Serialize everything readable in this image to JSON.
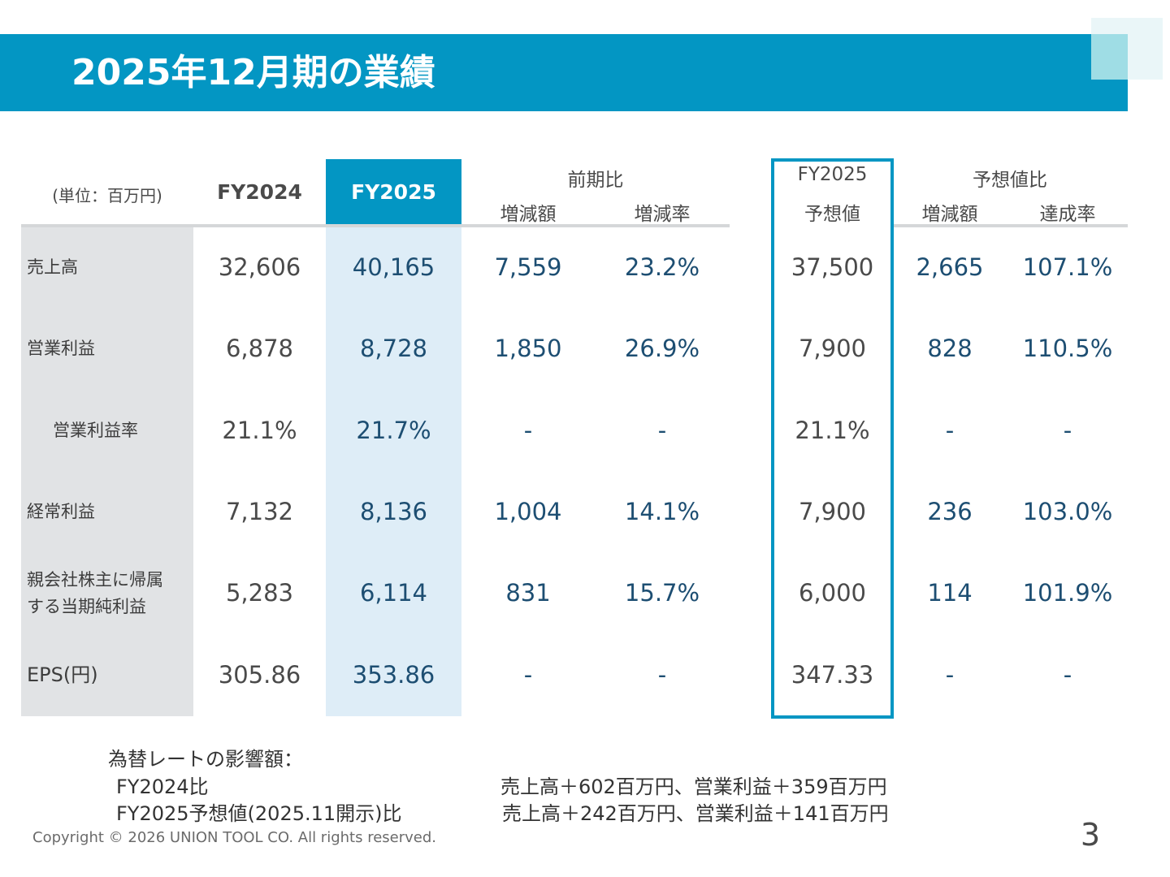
{
  "title": "2025年12月期の業績",
  "colors": {
    "accent": "#0396c3",
    "highlight": "#deedf7",
    "label_bg": "#e1e3e5",
    "value_blue": "#1d4e72"
  },
  "table": {
    "unit": "(単位：百万円)",
    "headers": {
      "fy2024": "FY2024",
      "fy2025": "FY2025",
      "prev_group": "前期比",
      "prev_diff": "増減額",
      "prev_rate": "増減率",
      "fc_line1": "FY2025",
      "fc_line2": "予想値",
      "fc_group": "予想値比",
      "fc_diff": "増減額",
      "fc_rate": "達成率"
    },
    "rows": [
      {
        "label": "売上高",
        "fy2024": "32,606",
        "fy2025": "40,165",
        "prev_diff": "7,559",
        "prev_rate": "23.2%",
        "forecast": "37,500",
        "fc_diff": "2,665",
        "fc_rate": "107.1%"
      },
      {
        "label": "営業利益",
        "fy2024": "6,878",
        "fy2025": "8,728",
        "prev_diff": "1,850",
        "prev_rate": "26.9%",
        "forecast": "7,900",
        "fc_diff": "828",
        "fc_rate": "110.5%"
      },
      {
        "label": "営業利益率",
        "fy2024": "21.1%",
        "fy2025": "21.7%",
        "prev_diff": "-",
        "prev_rate": "-",
        "forecast": "21.1%",
        "fc_diff": "-",
        "fc_rate": "-"
      },
      {
        "label": "経常利益",
        "fy2024": "7,132",
        "fy2025": "8,136",
        "prev_diff": "1,004",
        "prev_rate": "14.1%",
        "forecast": "7,900",
        "fc_diff": "236",
        "fc_rate": "103.0%"
      },
      {
        "label_line1": "親会社株主に帰属",
        "label_line2": "する当期純利益",
        "fy2024": "5,283",
        "fy2025": "6,114",
        "prev_diff": "831",
        "prev_rate": "15.7%",
        "forecast": "6,000",
        "fc_diff": "114",
        "fc_rate": "101.9%"
      },
      {
        "label": "EPS(円)",
        "fy2024": "305.86",
        "fy2025": "353.86",
        "prev_diff": "-",
        "prev_rate": "-",
        "forecast": "347.33",
        "fc_diff": "-",
        "fc_rate": "-"
      }
    ]
  },
  "fx_note": {
    "heading": "為替レートの影響額：",
    "line1_label": "FY2024比",
    "line1_value": "売上高＋602百万円、営業利益＋359百万円",
    "line2_label": "FY2025予想値(2025.11開示)比",
    "line2_value": "売上高＋242百万円、営業利益＋141百万円"
  },
  "copyright": "Copyright © 2026 UNION TOOL CO. All rights reserved.",
  "page_number": "3"
}
